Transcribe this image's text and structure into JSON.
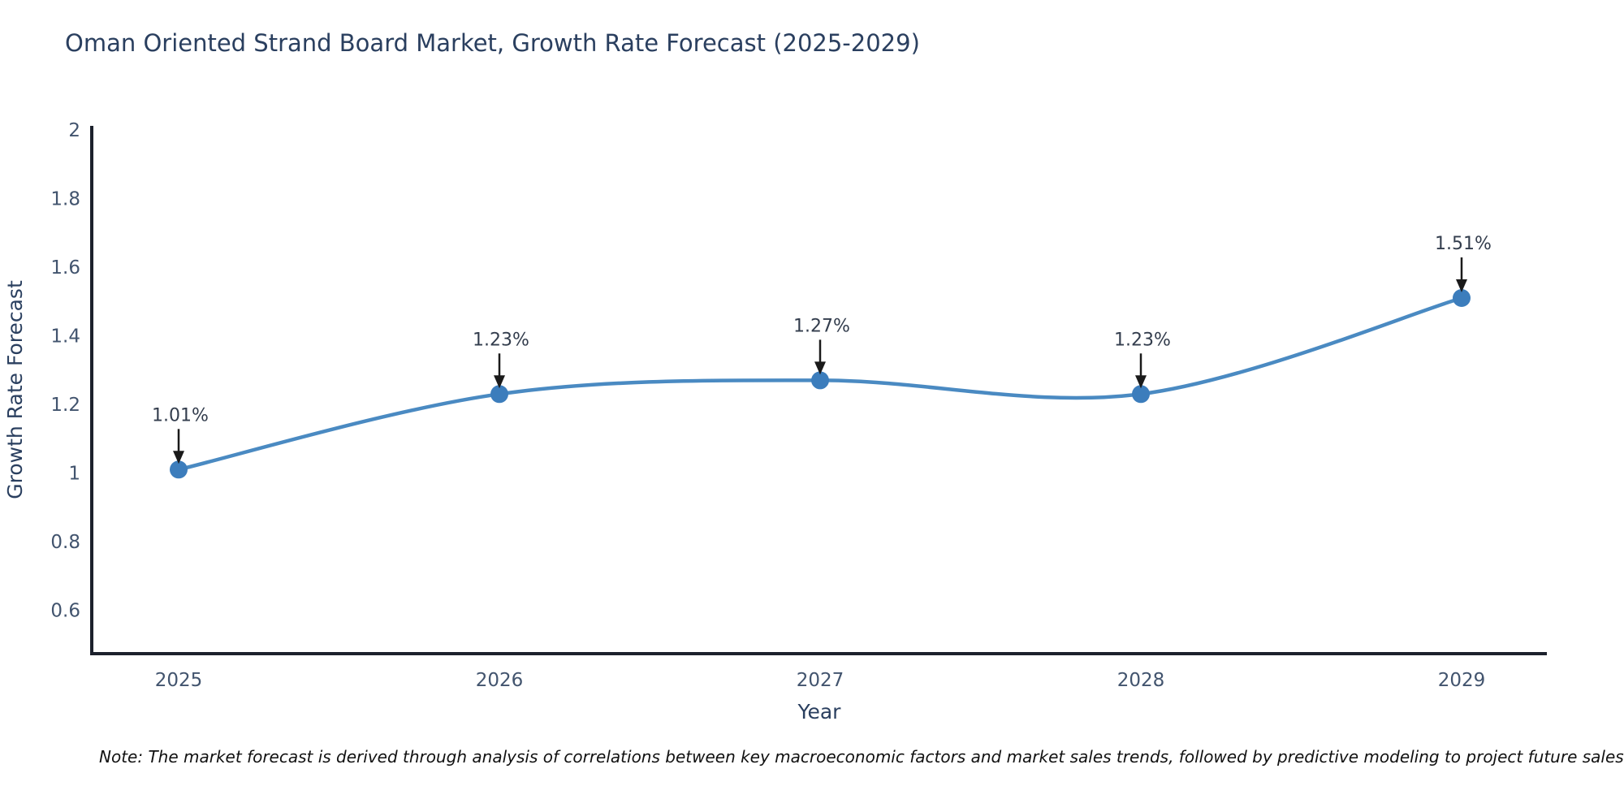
{
  "title": "Oman Oriented Strand Board Market, Growth Rate Forecast (2025-2029)",
  "note": "Note: The market forecast is derived through analysis of correlations between key macroeconomic factors and market sales trends, followed by predictive modeling to project future sales",
  "chart_data": {
    "type": "line",
    "line_shape": "spline",
    "x": [
      "2025",
      "2026",
      "2027",
      "2028",
      "2029"
    ],
    "values": [
      1.01,
      1.23,
      1.27,
      1.23,
      1.51
    ],
    "point_labels": [
      "1.01%",
      "1.23%",
      "1.27%",
      "1.23%",
      "1.51%"
    ],
    "title": "Oman Oriented Strand Board Market, Growth Rate Forecast (2025-2029)",
    "xlabel": "Year",
    "ylabel": "Growth Rate Forecast",
    "ylim": [
      0.47,
      2.0
    ],
    "yticks": [
      2,
      1.8,
      1.6,
      1.4,
      1.2,
      1,
      0.8,
      0.6
    ],
    "ytick_labels": [
      "2",
      "1.8",
      "1.6",
      "1.4",
      "1.2",
      "1",
      "0.8",
      "0.6"
    ],
    "grid": false,
    "legend": "none",
    "annotation_style": "value label with downward black arrow to each marker"
  },
  "colors": {
    "background": "#ffffff",
    "line": "#4a8ac2",
    "marker": "#3c7dbc",
    "axis": "#1c212c",
    "tick_label": "#42546e",
    "axis_title": "#2a3f5f",
    "page_title": "#2a3f5f",
    "annotation_text": "#333d4d",
    "annotation_arrow": "#1a1a1a",
    "note_text": "#111111"
  }
}
